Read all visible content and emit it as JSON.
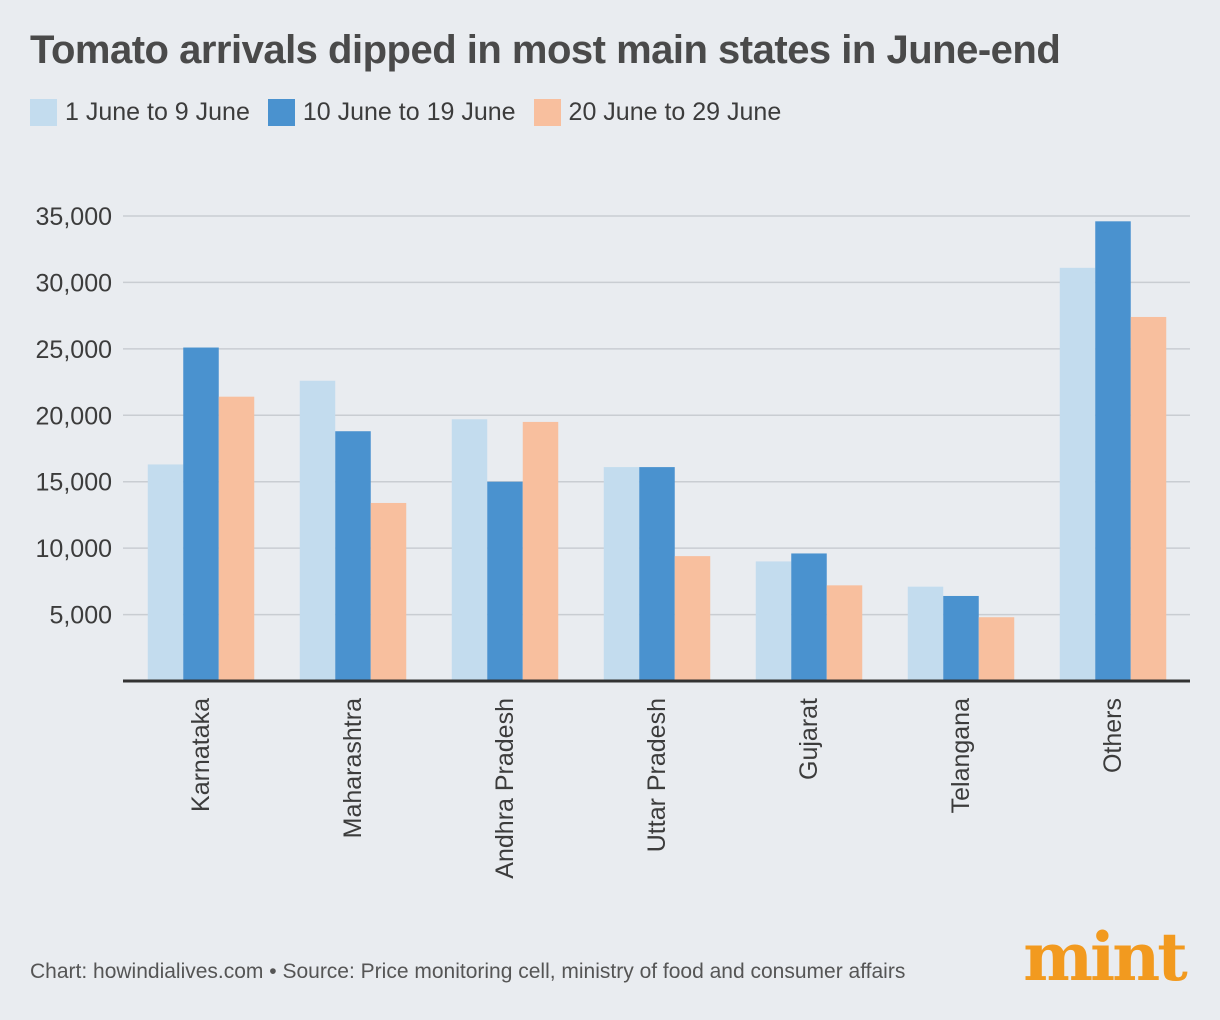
{
  "title": "Tomato arrivals dipped in most main states in June-end",
  "source": "Chart: howindialives.com • Source: Price monitoring cell, ministry of food and consumer affairs",
  "brand": "mint",
  "colors": {
    "background": "#e9ecf0",
    "series": [
      "#c3dcee",
      "#4a92cf",
      "#f8bf9e"
    ],
    "brand": "#f29a1f"
  },
  "chart_data": {
    "type": "bar",
    "categories": [
      "Karnataka",
      "Maharashtra",
      "Andhra Pradesh",
      "Uttar Pradesh",
      "Gujarat",
      "Telangana",
      "Others"
    ],
    "series": [
      {
        "name": "1 June to 9 June",
        "values": [
          16300,
          22600,
          19700,
          16100,
          9000,
          7100,
          31100
        ]
      },
      {
        "name": "10 June to 19 June",
        "values": [
          25100,
          18800,
          15000,
          16100,
          9600,
          6400,
          34600
        ]
      },
      {
        "name": "20 June to 29 June",
        "values": [
          21400,
          13400,
          19500,
          9400,
          7200,
          4800,
          27400
        ]
      }
    ],
    "yticks": [
      "5,000",
      "10,000",
      "15,000",
      "20,000",
      "25,000",
      "30,000",
      "35,000"
    ],
    "ytick_values": [
      5000,
      10000,
      15000,
      20000,
      25000,
      30000,
      35000
    ],
    "ylim": [
      0,
      35000
    ],
    "grid": true,
    "legend": "top-left"
  }
}
